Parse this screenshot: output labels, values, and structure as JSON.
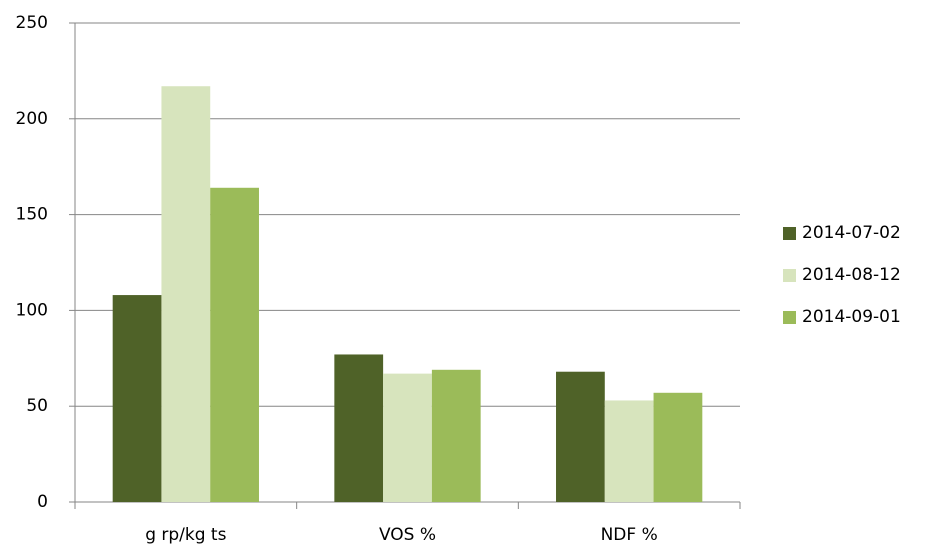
{
  "chart_data": {
    "type": "bar",
    "categories": [
      "g rp/kg ts",
      "VOS %",
      "NDF %"
    ],
    "series": [
      {
        "name": "2014-07-02",
        "color": "#4f6228",
        "values": [
          108,
          77,
          68
        ]
      },
      {
        "name": "2014-08-12",
        "color": "#d7e4bd",
        "values": [
          217,
          67,
          53
        ]
      },
      {
        "name": "2014-09-01",
        "color": "#9bbb59",
        "values": [
          164,
          69,
          57
        ]
      }
    ],
    "ylim": [
      0,
      250
    ],
    "yticks": [
      0,
      50,
      100,
      150,
      200,
      250
    ],
    "grid": true,
    "legend": "right"
  }
}
